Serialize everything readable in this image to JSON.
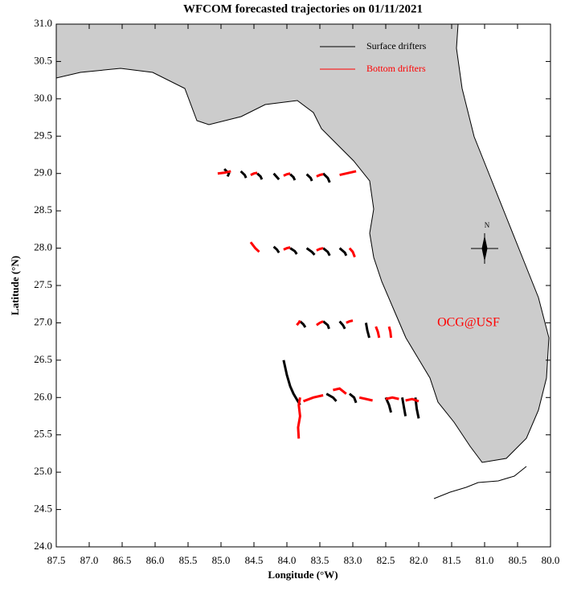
{
  "chart_data": {
    "type": "trajectory",
    "title": "WFCOM forecasted trajectories on 01/11/2021",
    "x_label": "Longitude (°W)",
    "y_label": "Latitude (°N)",
    "annotation": "OCG@USF",
    "compass_label": "N",
    "xlim": [
      87.5,
      80.0
    ],
    "ylim": [
      24.0,
      31.0
    ],
    "xticks": [
      {
        "value": 87.5,
        "label": "87.5"
      },
      {
        "value": 87,
        "label": "87.0"
      },
      {
        "value": 86.5,
        "label": "86.5"
      },
      {
        "value": 86,
        "label": "86.0"
      },
      {
        "value": 85.5,
        "label": "85.5"
      },
      {
        "value": 85,
        "label": "85.0"
      },
      {
        "value": 84.5,
        "label": "84.5"
      },
      {
        "value": 84,
        "label": "84.0"
      },
      {
        "value": 83.5,
        "label": "83.5"
      },
      {
        "value": 83,
        "label": "83.0"
      },
      {
        "value": 82.5,
        "label": "82.5"
      },
      {
        "value": 82,
        "label": "82.0"
      },
      {
        "value": 81.5,
        "label": "81.5"
      },
      {
        "value": 81,
        "label": "81.0"
      },
      {
        "value": 80.5,
        "label": "80.5"
      },
      {
        "value": 80,
        "label": "80.0"
      }
    ],
    "yticks": [
      {
        "value": 24,
        "label": "24.0"
      },
      {
        "value": 24.5,
        "label": "24.5"
      },
      {
        "value": 25,
        "label": "25.0"
      },
      {
        "value": 25.5,
        "label": "25.5"
      },
      {
        "value": 26,
        "label": "26.0"
      },
      {
        "value": 26.5,
        "label": "26.5"
      },
      {
        "value": 27,
        "label": "27.0"
      },
      {
        "value": 27.5,
        "label": "27.5"
      },
      {
        "value": 28,
        "label": "28.0"
      },
      {
        "value": 28.5,
        "label": "28.5"
      },
      {
        "value": 29,
        "label": "29.0"
      },
      {
        "value": 29.5,
        "label": "29.5"
      },
      {
        "value": 30,
        "label": "30.0"
      },
      {
        "value": 30.5,
        "label": "30.5"
      },
      {
        "value": 31,
        "label": "31.0"
      }
    ],
    "series": [
      {
        "name": "Surface drifters",
        "color": "#000000",
        "tracks": [
          {
            "x": [
              84.95,
              84.88,
              84.9
            ],
            "y": [
              29.06,
              29.0,
              28.96
            ]
          },
          {
            "x": [
              84.7,
              84.64,
              84.62
            ],
            "y": [
              29.03,
              28.98,
              28.94
            ]
          },
          {
            "x": [
              84.45,
              84.4,
              84.38
            ],
            "y": [
              29.0,
              28.96,
              28.92
            ]
          },
          {
            "x": [
              84.2,
              84.15,
              84.12
            ],
            "y": [
              29.0,
              28.95,
              28.92
            ]
          },
          {
            "x": [
              83.95,
              83.9,
              83.88
            ],
            "y": [
              28.99,
              28.95,
              28.91
            ]
          },
          {
            "x": [
              83.7,
              83.64,
              83.62
            ],
            "y": [
              28.99,
              28.94,
              28.9
            ]
          },
          {
            "x": [
              83.45,
              83.38,
              83.35
            ],
            "y": [
              29.0,
              28.94,
              28.88
            ]
          },
          {
            "x": [
              84.2,
              84.15,
              84.12
            ],
            "y": [
              28.02,
              27.98,
              27.94
            ]
          },
          {
            "x": [
              83.95,
              83.88,
              83.85
            ],
            "y": [
              28.0,
              27.96,
              27.92
            ]
          },
          {
            "x": [
              83.7,
              83.62,
              83.58
            ],
            "y": [
              28.0,
              27.95,
              27.91
            ]
          },
          {
            "x": [
              83.45,
              83.38,
              83.35
            ],
            "y": [
              28.0,
              27.95,
              27.9
            ]
          },
          {
            "x": [
              83.2,
              83.12,
              83.1
            ],
            "y": [
              28.0,
              27.94,
              27.9
            ]
          },
          {
            "x": [
              83.8,
              83.75,
              83.72
            ],
            "y": [
              27.02,
              26.98,
              26.94
            ]
          },
          {
            "x": [
              83.45,
              83.38,
              83.36
            ],
            "y": [
              27.02,
              26.97,
              26.92
            ]
          },
          {
            "x": [
              83.2,
              83.15,
              83.12
            ],
            "y": [
              27.02,
              26.97,
              26.92
            ]
          },
          {
            "x": [
              82.8,
              82.78,
              82.75
            ],
            "y": [
              27.0,
              26.9,
              26.8
            ]
          },
          {
            "x": [
              84.05,
              84.0,
              83.95,
              83.9,
              83.8
            ],
            "y": [
              26.5,
              26.3,
              26.15,
              26.05,
              25.9
            ]
          },
          {
            "x": [
              83.4,
              83.3,
              83.25
            ],
            "y": [
              26.05,
              26.0,
              25.95
            ]
          },
          {
            "x": [
              83.05,
              82.98,
              82.95
            ],
            "y": [
              26.05,
              26.0,
              25.93
            ]
          },
          {
            "x": [
              82.5,
              82.45,
              82.42
            ],
            "y": [
              26.0,
              25.9,
              25.8
            ]
          },
          {
            "x": [
              82.25,
              82.22,
              82.2
            ],
            "y": [
              26.0,
              25.85,
              25.75
            ]
          },
          {
            "x": [
              82.05,
              82.03,
              82.0
            ],
            "y": [
              26.0,
              25.85,
              25.72
            ]
          }
        ]
      },
      {
        "name": "Bottom drifters",
        "color": "#ff0000",
        "tracks": [
          {
            "x": [
              85.05,
              84.95,
              84.85
            ],
            "y": [
              29.0,
              29.01,
              29.03
            ]
          },
          {
            "x": [
              84.55,
              84.5,
              84.45
            ],
            "y": [
              28.98,
              29.0,
              29.01
            ]
          },
          {
            "x": [
              84.05,
              84.0,
              83.95
            ],
            "y": [
              28.97,
              28.99,
              29.0
            ]
          },
          {
            "x": [
              83.55,
              83.5,
              83.45
            ],
            "y": [
              28.96,
              28.98,
              28.99
            ]
          },
          {
            "x": [
              83.2,
              83.1,
              82.95
            ],
            "y": [
              28.98,
              29.0,
              29.03
            ]
          },
          {
            "x": [
              84.55,
              84.48,
              84.42
            ],
            "y": [
              28.08,
              28.0,
              27.95
            ]
          },
          {
            "x": [
              84.05,
              84.0,
              83.95
            ],
            "y": [
              27.98,
              28.0,
              28.01
            ]
          },
          {
            "x": [
              83.55,
              83.5,
              83.45
            ],
            "y": [
              27.97,
              27.99,
              28.0
            ]
          },
          {
            "x": [
              83.05,
              83.0,
              82.97
            ],
            "y": [
              28.0,
              27.95,
              27.88
            ]
          },
          {
            "x": [
              83.85,
              83.82,
              83.8
            ],
            "y": [
              26.97,
              27.0,
              27.03
            ]
          },
          {
            "x": [
              83.55,
              83.5,
              83.45
            ],
            "y": [
              26.97,
              27.0,
              27.02
            ]
          },
          {
            "x": [
              83.1,
              83.05,
              83.0
            ],
            "y": [
              27.0,
              27.02,
              27.03
            ]
          },
          {
            "x": [
              82.65,
              82.62,
              82.6
            ],
            "y": [
              26.95,
              26.88,
              26.8
            ]
          },
          {
            "x": [
              82.45,
              82.43,
              82.42
            ],
            "y": [
              26.95,
              26.88,
              26.8
            ]
          },
          {
            "x": [
              83.8,
              83.82,
              83.8,
              83.83,
              83.82
            ],
            "y": [
              26.0,
              25.9,
              25.75,
              25.6,
              25.45
            ]
          },
          {
            "x": [
              83.75,
              83.6,
              83.45
            ],
            "y": [
              25.95,
              26.0,
              26.03
            ]
          },
          {
            "x": [
              83.3,
              83.2,
              83.1
            ],
            "y": [
              26.1,
              26.12,
              26.05
            ]
          },
          {
            "x": [
              82.9,
              82.8,
              82.7
            ],
            "y": [
              26.0,
              25.98,
              25.96
            ]
          },
          {
            "x": [
              82.5,
              82.4,
              82.3
            ],
            "y": [
              25.98,
              26.0,
              25.98
            ]
          },
          {
            "x": [
              82.2,
              82.1,
              82.0
            ],
            "y": [
              25.96,
              25.98,
              25.95
            ]
          }
        ]
      }
    ]
  }
}
